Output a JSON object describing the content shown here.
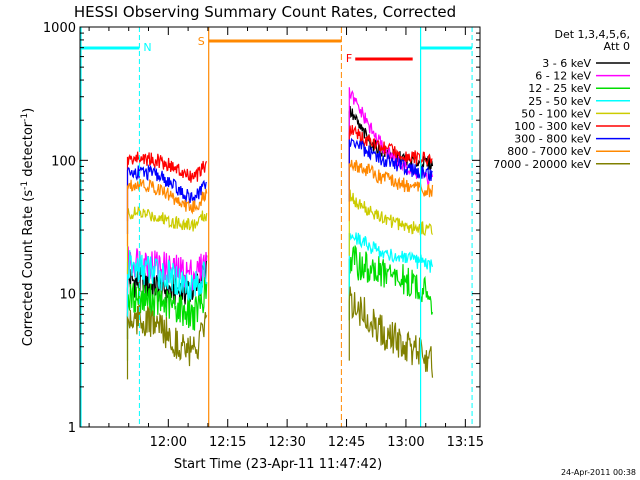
{
  "chart_data": {
    "type": "line",
    "title": "HESSI Observing Summary Count Rates, Corrected",
    "xlabel": "Start Time (23-Apr-11 11:47:42)",
    "ylabel_main": "Corrected Count Rate (s",
    "ylabel_sup1": "-1",
    "ylabel_mid": " detector",
    "ylabel_sup2": "-1",
    "ylabel_end": ")",
    "yscale": "log",
    "ylim": [
      1,
      1000
    ],
    "xlim_minutes": [
      -10,
      91
    ],
    "x_ticks": [
      {
        "min": 12.3,
        "label": "12:00"
      },
      {
        "min": 27.3,
        "label": "12:15"
      },
      {
        "min": 42.3,
        "label": "12:30"
      },
      {
        "min": 57.3,
        "label": "12:45"
      },
      {
        "min": 72.3,
        "label": "13:00"
      },
      {
        "min": 87.3,
        "label": "13:15"
      }
    ],
    "y_ticks": [
      {
        "value": 1,
        "label": "1"
      },
      {
        "value": 10,
        "label": "10"
      },
      {
        "value": 100,
        "label": "100"
      },
      {
        "value": 1000,
        "label": "1000"
      }
    ],
    "legend_header": [
      "Det 1,3,4,5,6,",
      "Att 0"
    ],
    "series": [
      {
        "name": "3 - 6 keV",
        "color": "#000000",
        "seg1": [
          13,
          12,
          11.5,
          11,
          10.5,
          10.5,
          11,
          15
        ],
        "seg2": [
          240,
          170,
          130,
          115,
          105,
          100,
          97,
          94
        ]
      },
      {
        "name": "6 - 12 keV",
        "color": "#ff00ff",
        "seg1": [
          17,
          18,
          17,
          16,
          15,
          14.5,
          14,
          17
        ],
        "seg2": [
          320,
          230,
          160,
          120,
          98,
          85,
          76,
          70
        ]
      },
      {
        "name": "12 - 25 keV",
        "color": "#00dd00",
        "seg1": [
          9,
          9.5,
          9,
          8.5,
          8,
          7.5,
          7,
          11
        ],
        "seg2": [
          18,
          16,
          15,
          14,
          13,
          12,
          11,
          9
        ]
      },
      {
        "name": "25 - 50 keV",
        "color": "#00ffff",
        "seg1": [
          16,
          15.5,
          15,
          14,
          13,
          12,
          11.5,
          14
        ],
        "seg2": [
          28,
          25,
          22,
          20,
          19,
          18,
          17,
          16
        ]
      },
      {
        "name": "50 - 100 keV",
        "color": "#cccc00",
        "seg1": [
          40,
          40,
          39,
          37,
          35,
          33,
          33,
          40
        ],
        "seg2": [
          55,
          45,
          40,
          36,
          34,
          32,
          31,
          30
        ]
      },
      {
        "name": "100 - 300 keV",
        "color": "#ff0000",
        "seg1": [
          100,
          105,
          102,
          98,
          90,
          78,
          74,
          95
        ],
        "seg2": [
          170,
          150,
          135,
          122,
          115,
          108,
          103,
          100
        ]
      },
      {
        "name": "300 - 800 keV",
        "color": "#0000ff",
        "seg1": [
          80,
          82,
          80,
          75,
          65,
          55,
          52,
          68
        ],
        "seg2": [
          140,
          125,
          110,
          100,
          92,
          86,
          82,
          78
        ]
      },
      {
        "name": "800 - 7000 keV",
        "color": "#ff8800",
        "seg1": [
          65,
          67,
          64,
          60,
          53,
          46,
          44,
          58
        ],
        "seg2": [
          100,
          88,
          80,
          73,
          68,
          64,
          61,
          58
        ]
      },
      {
        "name": "7000 - 20000 keV",
        "color": "#808000",
        "seg1": [
          6.5,
          6.5,
          6,
          5.5,
          4.5,
          4,
          3.5,
          6
        ],
        "seg2": [
          9,
          7.5,
          6,
          5,
          4.5,
          4,
          3.5,
          3
        ]
      }
    ],
    "segment_ranges": {
      "seg1": [
        2,
        22
      ],
      "seg2": [
        58,
        79
      ]
    },
    "annotations": {
      "night_label": "N",
      "saa_label": "S",
      "flare_label": "F",
      "night_bars": [
        [
          -10,
          5
        ],
        [
          76,
          89
        ]
      ],
      "saa_bar": [
        22.5,
        56
      ],
      "flare_bar": [
        59.5,
        74
      ]
    },
    "footer_date": "24-Apr-2011 00:38"
  }
}
